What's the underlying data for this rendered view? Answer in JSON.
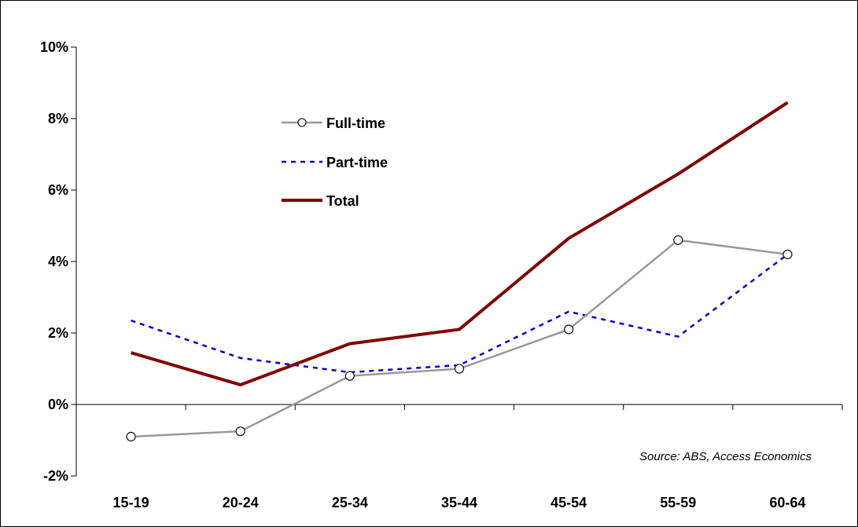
{
  "chart_data": {
    "type": "line",
    "categories": [
      "15-19",
      "20-24",
      "25-34",
      "35-44",
      "45-54",
      "55-59",
      "60-64"
    ],
    "y_ticks": [
      "10%",
      "8%",
      "6%",
      "4%",
      "2%",
      "0%",
      "-2%"
    ],
    "ylim": [
      -2,
      10
    ],
    "y_unit": "%",
    "grid": false,
    "legend_position": "top-left",
    "series": [
      {
        "name": "Full-time",
        "values": [
          -0.9,
          -0.75,
          0.8,
          1.0,
          2.1,
          4.6,
          4.2
        ],
        "color": "#999999",
        "style": "solid-with-circles"
      },
      {
        "name": "Part-time",
        "values": [
          2.35,
          1.3,
          0.9,
          1.1,
          2.6,
          1.9,
          4.2
        ],
        "color": "#0000cc",
        "style": "dashed"
      },
      {
        "name": "Total",
        "values": [
          1.45,
          0.55,
          1.7,
          2.1,
          4.65,
          6.45,
          8.45
        ],
        "color": "#800000",
        "style": "solid-thick"
      }
    ],
    "annotation": "Source: ABS, Access Economics"
  }
}
